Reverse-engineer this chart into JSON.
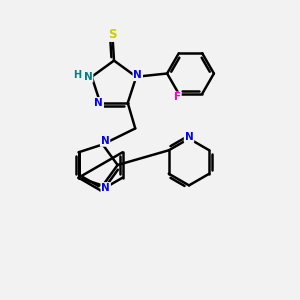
{
  "background_color": "#f2f2f2",
  "atom_colors": {
    "N": "#0000ff",
    "S": "#cccc00",
    "F": "#ff00cc",
    "H": "#008080",
    "C": "#000000"
  },
  "bond_color": "#000000",
  "bond_width": 1.8
}
